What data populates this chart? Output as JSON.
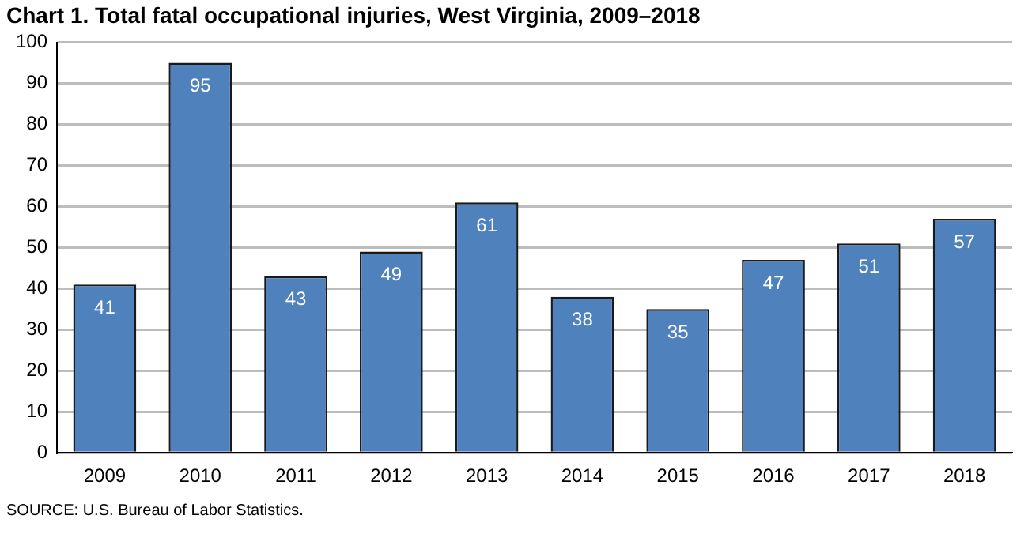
{
  "chart_data": {
    "type": "bar",
    "title": "Chart 1. Total fatal occupational injuries, West Virginia, 2009–2018",
    "categories": [
      "2009",
      "2010",
      "2011",
      "2012",
      "2013",
      "2014",
      "2015",
      "2016",
      "2017",
      "2018"
    ],
    "values": [
      41,
      95,
      43,
      49,
      61,
      38,
      35,
      47,
      51,
      57
    ],
    "color": "#4f81bd",
    "ylim": [
      0,
      100
    ],
    "yticks": [
      0,
      10,
      20,
      30,
      40,
      50,
      60,
      70,
      80,
      90,
      100
    ],
    "grid": "y",
    "data_labels": true,
    "annotations": [
      "SOURCE: U.S. Bureau  of Labor Statistics."
    ]
  }
}
